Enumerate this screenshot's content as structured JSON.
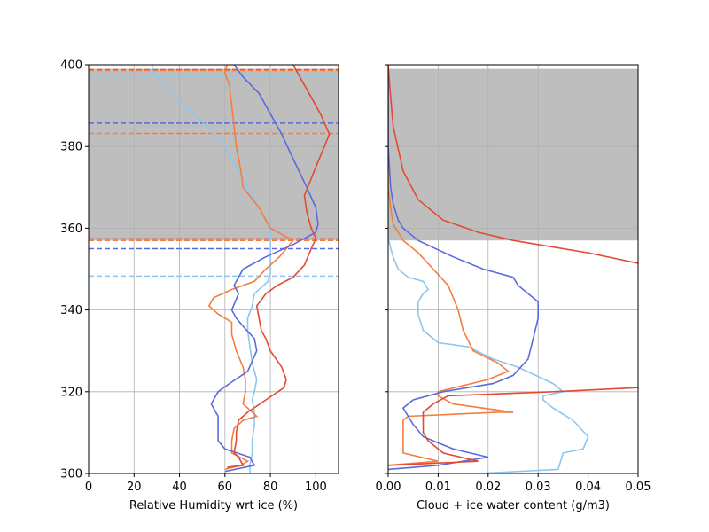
{
  "chart_data": [
    {
      "type": "line",
      "xlabel": "Relative Humidity wrt ice (%)",
      "ylabel": "",
      "xlim": [
        0,
        110
      ],
      "ylim": [
        300,
        400
      ],
      "xticks": [
        0,
        20,
        40,
        60,
        80,
        100
      ],
      "yticks": [
        300,
        320,
        340,
        360,
        380,
        400
      ],
      "grid": true,
      "shaded_band": {
        "y_from": 357,
        "y_to": 399,
        "color": "#bebebe"
      },
      "hlines": [
        {
          "y": 398.8,
          "color": "#e34a33"
        },
        {
          "y": 398.6,
          "color": "#f47d3f"
        },
        {
          "y": 397.2,
          "color": "#8ec6f0"
        },
        {
          "y": 385.7,
          "color": "#5b6bdc"
        },
        {
          "y": 383.2,
          "color": "#f47d3f"
        },
        {
          "y": 357.4,
          "color": "#e34a33"
        },
        {
          "y": 357.0,
          "color": "#f47d3f"
        },
        {
          "y": 355.0,
          "color": "#5b6bdc"
        },
        {
          "y": 348.3,
          "color": "#8ec6f0"
        }
      ],
      "series": [
        {
          "color": "#8ec6f0",
          "points": [
            [
              71,
              300
            ],
            [
              71,
              302
            ],
            [
              72,
              305
            ],
            [
              72,
              308
            ],
            [
              73,
              312
            ],
            [
              73,
              315
            ],
            [
              72,
              318
            ],
            [
              73,
              320
            ],
            [
              74,
              323
            ],
            [
              72,
              327
            ],
            [
              71,
              331
            ],
            [
              70,
              335
            ],
            [
              70,
              338
            ],
            [
              72,
              341
            ],
            [
              73,
              344
            ],
            [
              79,
              347
            ],
            [
              80,
              349
            ],
            [
              80,
              355
            ],
            [
              80,
              360
            ],
            [
              70,
              370
            ],
            [
              60,
              380
            ],
            [
              50,
              386
            ],
            [
              40,
              391
            ],
            [
              33,
              395
            ],
            [
              28,
              398.5
            ],
            [
              28,
              400
            ]
          ]
        },
        {
          "color": "#f47d3f",
          "points": [
            [
              60,
              301
            ],
            [
              67,
              302
            ],
            [
              70,
              303
            ],
            [
              63,
              305
            ],
            [
              63,
              308
            ],
            [
              64,
              311
            ],
            [
              68,
              313
            ],
            [
              74,
              314
            ],
            [
              68,
              317
            ],
            [
              69,
              320
            ],
            [
              69,
              323
            ],
            [
              68,
              326
            ],
            [
              65,
              330
            ],
            [
              63,
              334
            ],
            [
              63,
              337
            ],
            [
              57,
              339
            ],
            [
              53,
              341
            ],
            [
              55,
              343
            ],
            [
              63,
              345
            ],
            [
              73,
              347
            ],
            [
              78,
              350
            ],
            [
              84,
              353
            ],
            [
              90,
              357
            ],
            [
              80,
              360
            ],
            [
              75,
              365
            ],
            [
              68,
              370
            ],
            [
              67,
              374
            ],
            [
              65,
              380
            ],
            [
              64,
              385
            ],
            [
              63,
              390
            ],
            [
              62,
              395
            ],
            [
              60,
              398
            ],
            [
              61,
              400
            ]
          ]
        },
        {
          "color": "#5b6bdc",
          "points": [
            [
              60,
              300.5
            ],
            [
              73,
              302
            ],
            [
              71,
              304
            ],
            [
              60,
              306
            ],
            [
              57,
              308
            ],
            [
              57,
              312
            ],
            [
              57,
              314
            ],
            [
              54,
              317
            ],
            [
              57,
              320
            ],
            [
              62,
              322
            ],
            [
              70,
              325
            ],
            [
              74,
              330
            ],
            [
              73,
              333
            ],
            [
              68,
              336
            ],
            [
              65,
              338
            ],
            [
              63,
              340
            ],
            [
              66,
              344
            ],
            [
              64,
              346
            ],
            [
              68,
              350
            ],
            [
              78,
              353
            ],
            [
              90,
              356
            ],
            [
              100,
              359
            ],
            [
              101,
              361
            ],
            [
              100,
              365
            ],
            [
              96,
              370
            ],
            [
              90,
              377
            ],
            [
              85,
              383
            ],
            [
              80,
              388
            ],
            [
              75,
              393
            ],
            [
              68,
              397
            ],
            [
              64,
              400
            ]
          ]
        },
        {
          "color": "#e34a33",
          "points": [
            [
              61,
              301.5
            ],
            [
              68,
              302
            ],
            [
              66,
              304
            ],
            [
              64,
              305
            ],
            [
              65,
              308
            ],
            [
              65,
              310
            ],
            [
              66,
              313
            ],
            [
              70,
              315
            ],
            [
              78,
              318
            ],
            [
              86,
              321
            ],
            [
              87,
              323
            ],
            [
              85,
              326
            ],
            [
              80,
              330
            ],
            [
              78,
              333
            ],
            [
              76,
              335
            ],
            [
              75,
              338
            ],
            [
              74,
              341
            ],
            [
              78,
              344
            ],
            [
              83,
              346
            ],
            [
              90,
              348
            ],
            [
              95,
              351
            ],
            [
              98,
              355
            ],
            [
              100,
              357.5
            ],
            [
              98,
              360
            ],
            [
              96,
              364
            ],
            [
              95,
              368
            ],
            [
              100,
              375
            ],
            [
              106,
              383
            ],
            [
              102,
              388
            ],
            [
              97,
              393
            ],
            [
              93,
              397
            ],
            [
              90,
              400
            ]
          ]
        }
      ]
    },
    {
      "type": "line",
      "xlabel": "Cloud + ice water content (g/m3)",
      "ylabel": "",
      "xlim": [
        0,
        0.05
      ],
      "ylim": [
        300,
        400
      ],
      "xticks": [
        "0.00",
        "0.01",
        "0.02",
        "0.03",
        "0.04",
        "0.05"
      ],
      "yticks": [
        300,
        320,
        340,
        360,
        380,
        400
      ],
      "grid": true,
      "shaded_band": {
        "y_from": 357,
        "y_to": 399,
        "color": "#bebebe"
      },
      "series": [
        {
          "color": "#8ec6f0",
          "points": [
            [
              0.018,
              300
            ],
            [
              0.034,
              301
            ],
            [
              0.035,
              305
            ],
            [
              0.039,
              306
            ],
            [
              0.04,
              309
            ],
            [
              0.037,
              313
            ],
            [
              0.033,
              316
            ],
            [
              0.031,
              318
            ],
            [
              0.031,
              319
            ],
            [
              0.035,
              320
            ],
            [
              0.033,
              322
            ],
            [
              0.026,
              326
            ],
            [
              0.021,
              328
            ],
            [
              0.016,
              331
            ],
            [
              0.01,
              332
            ],
            [
              0.007,
              335
            ],
            [
              0.006,
              339
            ],
            [
              0.006,
              342
            ],
            [
              0.007,
              344
            ],
            [
              0.008,
              345
            ],
            [
              0.007,
              347
            ],
            [
              0.004,
              348
            ],
            [
              0.002,
              350
            ],
            [
              0.001,
              353
            ],
            [
              0.0003,
              356
            ],
            [
              0.0,
              358
            ]
          ]
        },
        {
          "color": "#f47d3f",
          "points": [
            [
              0.0,
              302
            ],
            [
              0.01,
              303
            ],
            [
              0.003,
              305
            ],
            [
              0.003,
              309
            ],
            [
              0.003,
              313
            ],
            [
              0.004,
              314
            ],
            [
              0.022,
              315
            ],
            [
              0.025,
              315
            ],
            [
              0.013,
              317
            ],
            [
              0.01,
              319
            ],
            [
              0.01,
              320
            ],
            [
              0.02,
              323
            ],
            [
              0.024,
              325
            ],
            [
              0.022,
              327
            ],
            [
              0.017,
              330
            ],
            [
              0.015,
              335
            ],
            [
              0.014,
              340
            ],
            [
              0.012,
              346
            ],
            [
              0.009,
              350
            ],
            [
              0.006,
              354
            ],
            [
              0.003,
              357
            ],
            [
              0.001,
              361
            ],
            [
              0.0005,
              365
            ],
            [
              0.0,
              370
            ],
            [
              0.0,
              400
            ]
          ]
        },
        {
          "color": "#5b6bdc",
          "points": [
            [
              0.0,
              301
            ],
            [
              0.01,
              302
            ],
            [
              0.02,
              304
            ],
            [
              0.013,
              306
            ],
            [
              0.007,
              309
            ],
            [
              0.005,
              312
            ],
            [
              0.003,
              316
            ],
            [
              0.005,
              318
            ],
            [
              0.011,
              320
            ],
            [
              0.021,
              322
            ],
            [
              0.025,
              324
            ],
            [
              0.028,
              328
            ],
            [
              0.029,
              333
            ],
            [
              0.03,
              338
            ],
            [
              0.03,
              342
            ],
            [
              0.026,
              346
            ],
            [
              0.025,
              348
            ],
            [
              0.019,
              350
            ],
            [
              0.013,
              353
            ],
            [
              0.006,
              357
            ],
            [
              0.003,
              360
            ],
            [
              0.002,
              362
            ],
            [
              0.001,
              366
            ],
            [
              0.0005,
              370
            ],
            [
              0.0,
              380
            ],
            [
              0.0,
              400
            ]
          ]
        },
        {
          "color": "#e34a33",
          "points": [
            [
              0.0,
              302
            ],
            [
              0.018,
              303
            ],
            [
              0.011,
              305
            ],
            [
              0.008,
              308
            ],
            [
              0.007,
              310
            ],
            [
              0.007,
              313
            ],
            [
              0.007,
              315
            ],
            [
              0.009,
              317
            ],
            [
              0.012,
              319
            ],
            [
              0.033,
              320
            ],
            [
              0.05,
              321
            ]
          ],
          "extra": {
            "points": [
              [
                0.05,
                351.4
              ],
              [
                0.04,
                354
              ],
              [
                0.025,
                357
              ],
              [
                0.018,
                359
              ],
              [
                0.011,
                362
              ],
              [
                0.006,
                367
              ],
              [
                0.003,
                374
              ],
              [
                0.001,
                385
              ],
              [
                0.0003,
                395
              ],
              [
                0.0,
                400
              ]
            ]
          }
        }
      ]
    }
  ]
}
